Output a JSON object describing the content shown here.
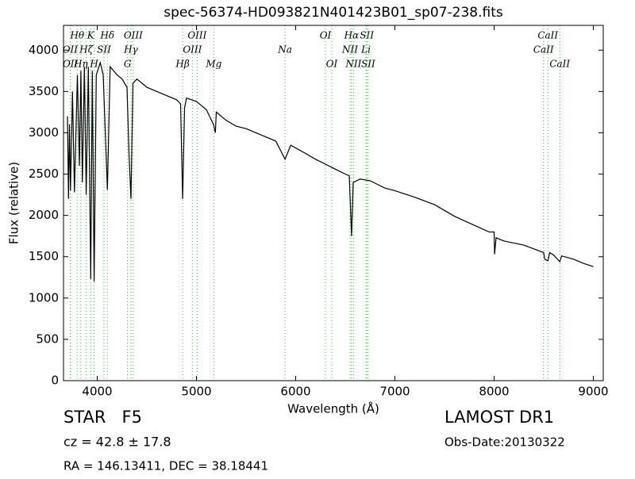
{
  "chart_data": {
    "type": "line",
    "title": "spec-56374-HD093821N401423B01_sp07-238.fits",
    "x_label": "Wavelength (Å)",
    "y_label": "Flux (relative)",
    "xlim": [
      3660,
      9100
    ],
    "ylim": [
      0,
      4300
    ],
    "xticks": [
      4000,
      5000,
      6000,
      7000,
      8000,
      9000
    ],
    "yticks": [
      0,
      500,
      1000,
      1500,
      2000,
      2500,
      3000,
      3500,
      4000
    ],
    "grid": false,
    "series": [
      {
        "color": "#000000",
        "x": [
          3700,
          3710,
          3720,
          3730,
          3750,
          3770,
          3800,
          3820,
          3835,
          3850,
          3870,
          3889,
          3910,
          3934,
          3950,
          3969,
          3990,
          4030,
          4060,
          4102,
          4130,
          4200,
          4250,
          4300,
          4320,
          4340,
          4360,
          4400,
          4450,
          4500,
          4600,
          4700,
          4800,
          4840,
          4861,
          4880,
          4900,
          5000,
          5100,
          5172,
          5190,
          5200,
          5300,
          5400,
          5500,
          5600,
          5700,
          5800,
          5893,
          5950,
          6100,
          6200,
          6300,
          6400,
          6500,
          6540,
          6563,
          6580,
          6650,
          6750,
          6900,
          7000,
          7200,
          7400,
          7600,
          7800,
          7950,
          8000,
          8005,
          8020,
          8100,
          8300,
          8498,
          8510,
          8542,
          8560,
          8600,
          8662,
          8680,
          8800,
          8900,
          9000
        ],
        "values": [
          3200,
          2200,
          3100,
          2300,
          3500,
          2280,
          3700,
          2600,
          3750,
          2400,
          3800,
          2250,
          3800,
          1230,
          3750,
          1200,
          3700,
          3850,
          3700,
          2310,
          3800,
          3700,
          3650,
          3550,
          2750,
          2200,
          3600,
          3650,
          3600,
          3550,
          3500,
          3450,
          3400,
          3350,
          2200,
          3300,
          3420,
          3380,
          3280,
          3100,
          3000,
          3250,
          3150,
          3080,
          3050,
          3000,
          2950,
          2900,
          2680,
          2850,
          2750,
          2680,
          2620,
          2560,
          2500,
          2480,
          1750,
          2400,
          2440,
          2420,
          2330,
          2300,
          2220,
          2130,
          1990,
          1880,
          1800,
          1800,
          1530,
          1730,
          1690,
          1640,
          1550,
          1470,
          1450,
          1550,
          1520,
          1440,
          1510,
          1470,
          1420,
          1380
        ]
      }
    ],
    "line_marker_color": "#44bb44",
    "line_label_rows": [
      [
        {
          "label": "Hθ",
          "x": 3798
        },
        {
          "label": "K",
          "x": 3934
        },
        {
          "label": "Hδ",
          "x": 4102
        },
        {
          "label": "OIII",
          "x": 4363
        },
        {
          "label": "OIII",
          "x": 5007
        },
        {
          "label": "OI",
          "x": 6300
        },
        {
          "label": "Hα",
          "x": 6563
        },
        {
          "label": "SII",
          "x": 6717
        },
        {
          "label": "CaII",
          "x": 8542
        }
      ],
      [
        {
          "label": "OII",
          "x": 3727
        },
        {
          "label": "Hζ",
          "x": 3889
        },
        {
          "label": "SII",
          "x": 4068
        },
        {
          "label": "Hγ",
          "x": 4340
        },
        {
          "label": "OIII",
          "x": 4959
        },
        {
          "label": "Na",
          "x": 5893
        },
        {
          "label": "NII",
          "x": 6548
        },
        {
          "label": "Li",
          "x": 6708
        },
        {
          "label": "CaII",
          "x": 8498
        }
      ],
      [
        {
          "label": "OII",
          "x": 3729
        },
        {
          "label": "Hη",
          "x": 3835
        },
        {
          "label": "H",
          "x": 3969
        },
        {
          "label": "G",
          "x": 4305
        },
        {
          "label": "Hβ",
          "x": 4861
        },
        {
          "label": "Mg",
          "x": 5175
        },
        {
          "label": "OI",
          "x": 6364
        },
        {
          "label": "NII",
          "x": 6583
        },
        {
          "label": "SII",
          "x": 6731
        },
        {
          "label": "CaII",
          "x": 8662
        }
      ]
    ],
    "footer": {
      "object": "STAR   F5",
      "redshift": "cz = 42.8 ± 17.8",
      "coords": "RA = 146.13411, DEC = 38.18441",
      "survey": "LAMOST DR1",
      "obs_date": "Obs-Date:20130322"
    }
  }
}
